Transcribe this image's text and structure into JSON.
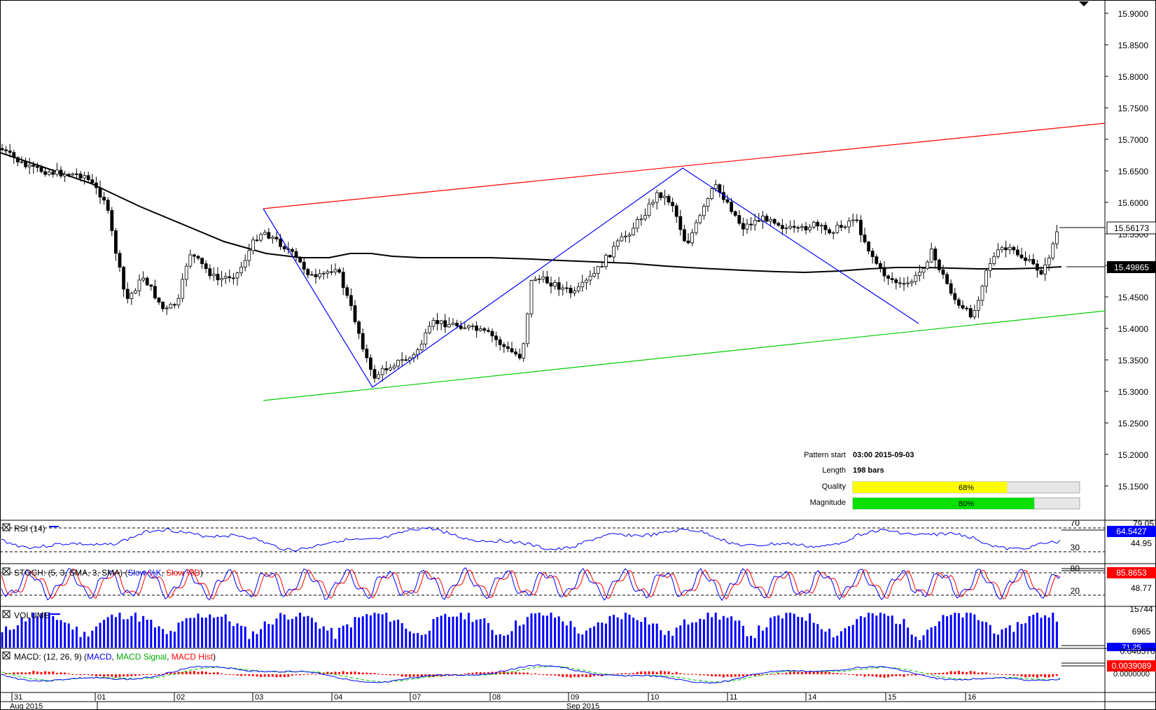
{
  "colors": {
    "background": "#ffffff",
    "candle": "#000000",
    "ma": "#000000",
    "resistance": "#ff0000",
    "support": "#00cc00",
    "zigzag": "#0000ff",
    "quality_bar": "#ffff00",
    "magnitude_bar": "#00e000",
    "bar_bg": "#e6e6e6",
    "rsi_line": "#0000ff",
    "stoch_k": "#0000ff",
    "stoch_d": "#ff0000",
    "volume": "#0000ff",
    "macd": "#0000ff",
    "macd_signal": "#00cc00",
    "macd_hist": "#ff0000",
    "price_badge_dark": "#000000",
    "price_badge_blue": "#0000ff",
    "price_badge_red": "#ff0000"
  },
  "price_axis": {
    "ticks": [
      "15.9000",
      "15.8500",
      "15.8000",
      "15.7500",
      "15.7000",
      "15.6500",
      "15.6000",
      "15.5500",
      "15.5000",
      "15.4500",
      "15.4000",
      "15.3500",
      "15.3000",
      "15.2500",
      "15.2000",
      "15.1500"
    ],
    "current_price": "15.56173",
    "ma_price": "15.49865"
  },
  "pattern_info": {
    "pattern_start_label": "Pattern start",
    "pattern_start_value": "03:00 2015-09-03",
    "length_label": "Length",
    "length_value": "198 bars",
    "quality_label": "Quality",
    "quality_value": "68%",
    "quality_pct": 68,
    "magnitude_label": "Magnitude",
    "magnitude_value": "80%",
    "magnitude_pct": 80
  },
  "rsi": {
    "title": "RSI (14)",
    "level_high": "70",
    "level_low": "30",
    "axis_top": "79.05",
    "axis_mid": "44.95",
    "current": "64.5427"
  },
  "stoch": {
    "title_prefix": "STOCH: (5, 3, SMA, 3, SMA) (",
    "k_label": "Slow %K",
    "d_label": "Slow %D",
    "title_suffix": ")",
    "level_high": "80",
    "level_low": "20",
    "axis_mid": "48.77",
    "current": "85.8653"
  },
  "volume": {
    "title": "VOLUME",
    "axis_top": "15744",
    "axis_mid": "6965",
    "current": "71.25"
  },
  "macd": {
    "title_prefix": "MACD: (12, 26, 9) (",
    "macd_label": "MACD",
    "signal_label": "MACD Signal",
    "hist_label": "MACD Hist",
    "title_suffix": ")",
    "axis_top": "0.0465708",
    "current": "0.0039089",
    "axis_bottom": "0.0000000"
  },
  "time_axis": {
    "day_labels": [
      "31",
      "01",
      "02",
      "03",
      "04",
      "07",
      "08",
      "09",
      "10",
      "11",
      "14",
      "15",
      "16"
    ],
    "month_labels": [
      "Aug 2015",
      "Sep 2015"
    ]
  }
}
